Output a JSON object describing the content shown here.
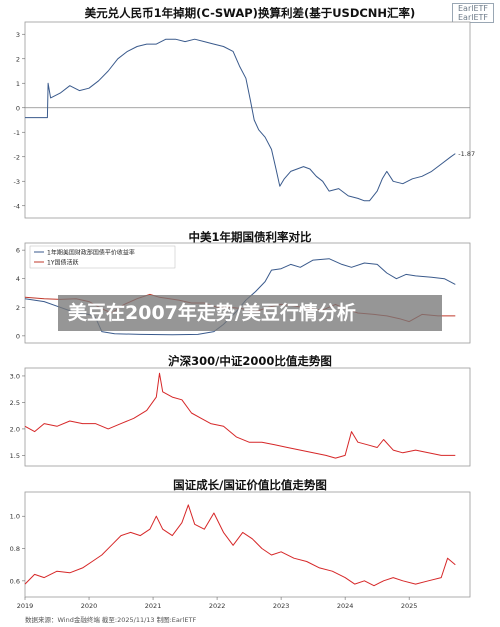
{
  "logo": {
    "line1": "EarlETF",
    "line2": "EarlETF"
  },
  "source": "数据来源：Wind金融终端 截至:2025/11/13 制图:EarlETF",
  "overlay": "美豆在2007年走势/美豆行情分析",
  "x_axis_labels": [
    "2019",
    "2020",
    "2021",
    "2022",
    "2023",
    "2024",
    "2025"
  ],
  "chart_data": [
    {
      "type": "line",
      "title": "美元兑人民币1年掉期(C-SWAP)换算利差(基于USDCNH汇率)",
      "xlabel": "",
      "ylabel": "",
      "ylim": [
        -4.5,
        3.5
      ],
      "yticks": [
        3,
        2,
        1,
        0,
        -1,
        -2,
        -3,
        -4
      ],
      "grid": false,
      "reference_line": 0,
      "end_label": "-1.87",
      "series": [
        {
          "color": "#3a5a8c",
          "points": [
            [
              2019.0,
              -0.4
            ],
            [
              2019.35,
              -0.4
            ],
            [
              2019.36,
              1.0
            ],
            [
              2019.4,
              0.4
            ],
            [
              2019.55,
              0.6
            ],
            [
              2019.7,
              0.9
            ],
            [
              2019.85,
              0.7
            ],
            [
              2020.0,
              0.8
            ],
            [
              2020.15,
              1.1
            ],
            [
              2020.3,
              1.5
            ],
            [
              2020.45,
              2.0
            ],
            [
              2020.6,
              2.3
            ],
            [
              2020.75,
              2.5
            ],
            [
              2020.9,
              2.6
            ],
            [
              2021.05,
              2.6
            ],
            [
              2021.2,
              2.8
            ],
            [
              2021.35,
              2.8
            ],
            [
              2021.5,
              2.7
            ],
            [
              2021.65,
              2.8
            ],
            [
              2021.8,
              2.7
            ],
            [
              2021.95,
              2.6
            ],
            [
              2022.1,
              2.5
            ],
            [
              2022.25,
              2.3
            ],
            [
              2022.35,
              1.7
            ],
            [
              2022.45,
              1.2
            ],
            [
              2022.52,
              0.3
            ],
            [
              2022.58,
              -0.5
            ],
            [
              2022.65,
              -0.9
            ],
            [
              2022.75,
              -1.2
            ],
            [
              2022.85,
              -1.7
            ],
            [
              2022.92,
              -2.5
            ],
            [
              2022.98,
              -3.2
            ],
            [
              2023.05,
              -2.9
            ],
            [
              2023.15,
              -2.6
            ],
            [
              2023.25,
              -2.5
            ],
            [
              2023.35,
              -2.4
            ],
            [
              2023.45,
              -2.5
            ],
            [
              2023.55,
              -2.8
            ],
            [
              2023.65,
              -3.0
            ],
            [
              2023.75,
              -3.4
            ],
            [
              2023.9,
              -3.3
            ],
            [
              2024.05,
              -3.6
            ],
            [
              2024.2,
              -3.7
            ],
            [
              2024.3,
              -3.8
            ],
            [
              2024.38,
              -3.8
            ],
            [
              2024.5,
              -3.4
            ],
            [
              2024.58,
              -2.9
            ],
            [
              2024.65,
              -2.6
            ],
            [
              2024.75,
              -3.0
            ],
            [
              2024.9,
              -3.1
            ],
            [
              2025.05,
              -2.9
            ],
            [
              2025.2,
              -2.8
            ],
            [
              2025.35,
              -2.6
            ],
            [
              2025.5,
              -2.3
            ],
            [
              2025.65,
              -2.0
            ],
            [
              2025.72,
              -1.87
            ]
          ]
        }
      ]
    },
    {
      "type": "line",
      "title": "中美1年期国债利率对比",
      "xlabel": "",
      "ylabel": "",
      "ylim": [
        -0.5,
        6.5
      ],
      "yticks": [
        6,
        4,
        2,
        0
      ],
      "grid": false,
      "legend_position": "top-left",
      "series": [
        {
          "name": "1年期美国财政部国债平价收益率",
          "color": "#3a5a8c",
          "points": [
            [
              2019.0,
              2.6
            ],
            [
              2019.3,
              2.4
            ],
            [
              2019.55,
              2.0
            ],
            [
              2019.8,
              1.6
            ],
            [
              2020.0,
              1.5
            ],
            [
              2020.1,
              1.3
            ],
            [
              2020.2,
              0.3
            ],
            [
              2020.4,
              0.15
            ],
            [
              2020.8,
              0.1
            ],
            [
              2021.3,
              0.08
            ],
            [
              2021.7,
              0.1
            ],
            [
              2021.95,
              0.3
            ],
            [
              2022.1,
              0.8
            ],
            [
              2022.3,
              1.7
            ],
            [
              2022.45,
              2.5
            ],
            [
              2022.6,
              3.1
            ],
            [
              2022.75,
              3.8
            ],
            [
              2022.85,
              4.6
            ],
            [
              2023.0,
              4.7
            ],
            [
              2023.15,
              5.0
            ],
            [
              2023.3,
              4.8
            ],
            [
              2023.5,
              5.3
            ],
            [
              2023.75,
              5.4
            ],
            [
              2023.95,
              5.0
            ],
            [
              2024.1,
              4.8
            ],
            [
              2024.3,
              5.1
            ],
            [
              2024.5,
              5.0
            ],
            [
              2024.65,
              4.4
            ],
            [
              2024.8,
              4.0
            ],
            [
              2024.95,
              4.3
            ],
            [
              2025.1,
              4.2
            ],
            [
              2025.35,
              4.1
            ],
            [
              2025.55,
              4.0
            ],
            [
              2025.72,
              3.6
            ]
          ]
        },
        {
          "name": "1Y国债活跃",
          "color": "#c0392b",
          "points": [
            [
              2019.0,
              2.7
            ],
            [
              2019.3,
              2.6
            ],
            [
              2019.55,
              2.55
            ],
            [
              2019.8,
              2.6
            ],
            [
              2020.0,
              2.4
            ],
            [
              2020.2,
              1.9
            ],
            [
              2020.35,
              1.6
            ],
            [
              2020.55,
              2.2
            ],
            [
              2020.75,
              2.6
            ],
            [
              2020.95,
              2.9
            ],
            [
              2021.1,
              2.7
            ],
            [
              2021.4,
              2.5
            ],
            [
              2021.6,
              2.3
            ],
            [
              2021.8,
              2.3
            ],
            [
              2022.0,
              2.0
            ],
            [
              2022.2,
              2.0
            ],
            [
              2022.4,
              1.9
            ],
            [
              2022.6,
              1.7
            ],
            [
              2022.8,
              2.0
            ],
            [
              2023.0,
              2.2
            ],
            [
              2023.2,
              2.1
            ],
            [
              2023.45,
              1.9
            ],
            [
              2023.65,
              1.8
            ],
            [
              2023.85,
              2.2
            ],
            [
              2024.0,
              1.9
            ],
            [
              2024.2,
              1.6
            ],
            [
              2024.45,
              1.5
            ],
            [
              2024.65,
              1.4
            ],
            [
              2024.85,
              1.2
            ],
            [
              2025.0,
              1.0
            ],
            [
              2025.2,
              1.5
            ],
            [
              2025.45,
              1.4
            ],
            [
              2025.72,
              1.4
            ]
          ]
        }
      ]
    },
    {
      "type": "line",
      "title": "沪深300/中证2000比值走势图",
      "xlabel": "",
      "ylabel": "",
      "ylim": [
        1.3,
        3.15
      ],
      "yticks": [
        3.0,
        2.5,
        2.0,
        1.5
      ],
      "grid": false,
      "series": [
        {
          "color": "#d62728",
          "points": [
            [
              2019.0,
              2.05
            ],
            [
              2019.15,
              1.95
            ],
            [
              2019.3,
              2.1
            ],
            [
              2019.5,
              2.05
            ],
            [
              2019.7,
              2.15
            ],
            [
              2019.9,
              2.1
            ],
            [
              2020.1,
              2.1
            ],
            [
              2020.3,
              2.0
            ],
            [
              2020.5,
              2.1
            ],
            [
              2020.7,
              2.2
            ],
            [
              2020.9,
              2.35
            ],
            [
              2021.05,
              2.6
            ],
            [
              2021.1,
              3.05
            ],
            [
              2021.15,
              2.7
            ],
            [
              2021.3,
              2.6
            ],
            [
              2021.45,
              2.55
            ],
            [
              2021.6,
              2.3
            ],
            [
              2021.75,
              2.2
            ],
            [
              2021.9,
              2.1
            ],
            [
              2022.1,
              2.05
            ],
            [
              2022.3,
              1.85
            ],
            [
              2022.5,
              1.75
            ],
            [
              2022.7,
              1.75
            ],
            [
              2022.9,
              1.7
            ],
            [
              2023.1,
              1.65
            ],
            [
              2023.3,
              1.6
            ],
            [
              2023.5,
              1.55
            ],
            [
              2023.7,
              1.5
            ],
            [
              2023.85,
              1.45
            ],
            [
              2024.0,
              1.5
            ],
            [
              2024.1,
              1.95
            ],
            [
              2024.2,
              1.75
            ],
            [
              2024.35,
              1.7
            ],
            [
              2024.5,
              1.65
            ],
            [
              2024.6,
              1.8
            ],
            [
              2024.75,
              1.6
            ],
            [
              2024.9,
              1.55
            ],
            [
              2025.1,
              1.6
            ],
            [
              2025.3,
              1.55
            ],
            [
              2025.5,
              1.5
            ],
            [
              2025.72,
              1.5
            ]
          ]
        }
      ]
    },
    {
      "type": "line",
      "title": "国证成长/国证价值比值走势图",
      "xlabel": "",
      "ylabel": "",
      "ylim": [
        0.5,
        1.15
      ],
      "yticks": [
        1.0,
        0.8,
        0.6
      ],
      "grid": false,
      "series": [
        {
          "color": "#d62728",
          "points": [
            [
              2019.0,
              0.58
            ],
            [
              2019.15,
              0.64
            ],
            [
              2019.3,
              0.62
            ],
            [
              2019.5,
              0.66
            ],
            [
              2019.7,
              0.65
            ],
            [
              2019.9,
              0.68
            ],
            [
              2020.05,
              0.72
            ],
            [
              2020.2,
              0.76
            ],
            [
              2020.35,
              0.82
            ],
            [
              2020.5,
              0.88
            ],
            [
              2020.65,
              0.9
            ],
            [
              2020.8,
              0.88
            ],
            [
              2020.95,
              0.92
            ],
            [
              2021.05,
              1.0
            ],
            [
              2021.15,
              0.92
            ],
            [
              2021.3,
              0.88
            ],
            [
              2021.45,
              0.96
            ],
            [
              2021.55,
              1.07
            ],
            [
              2021.65,
              0.95
            ],
            [
              2021.8,
              0.92
            ],
            [
              2021.95,
              1.02
            ],
            [
              2022.1,
              0.9
            ],
            [
              2022.25,
              0.82
            ],
            [
              2022.4,
              0.9
            ],
            [
              2022.55,
              0.86
            ],
            [
              2022.7,
              0.8
            ],
            [
              2022.85,
              0.76
            ],
            [
              2023.0,
              0.78
            ],
            [
              2023.2,
              0.74
            ],
            [
              2023.4,
              0.72
            ],
            [
              2023.6,
              0.68
            ],
            [
              2023.8,
              0.66
            ],
            [
              2024.0,
              0.62
            ],
            [
              2024.15,
              0.58
            ],
            [
              2024.3,
              0.6
            ],
            [
              2024.45,
              0.57
            ],
            [
              2024.6,
              0.6
            ],
            [
              2024.75,
              0.62
            ],
            [
              2024.9,
              0.6
            ],
            [
              2025.1,
              0.58
            ],
            [
              2025.3,
              0.6
            ],
            [
              2025.5,
              0.62
            ],
            [
              2025.6,
              0.74
            ],
            [
              2025.72,
              0.7
            ]
          ]
        }
      ]
    }
  ]
}
